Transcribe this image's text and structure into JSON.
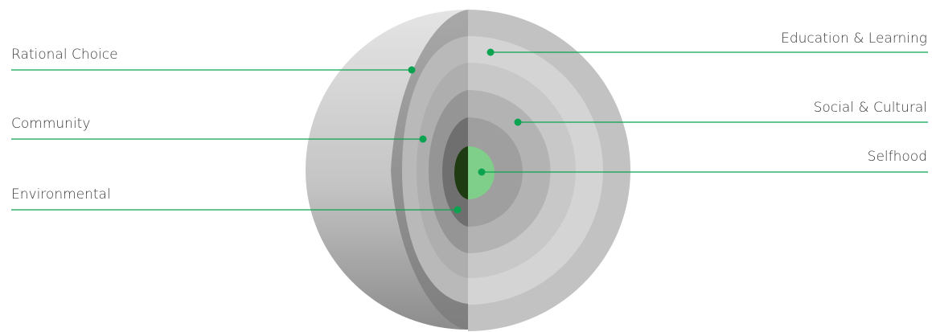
{
  "colors": {
    "accent": "#0aa34f",
    "label_text": "#3a3a3a",
    "core_light": "#7fce8a",
    "core_dark": "#1e3b12"
  },
  "labels": {
    "left": [
      {
        "id": "rational-choice",
        "text": "Rational Choice"
      },
      {
        "id": "community",
        "text": "Community"
      },
      {
        "id": "environmental",
        "text": "Environmental"
      }
    ],
    "right": [
      {
        "id": "education-learning",
        "text": "Education & Learning"
      },
      {
        "id": "social-cultural",
        "text": "Social & Cultural"
      },
      {
        "id": "selfhood",
        "text": "Selfhood"
      }
    ]
  }
}
